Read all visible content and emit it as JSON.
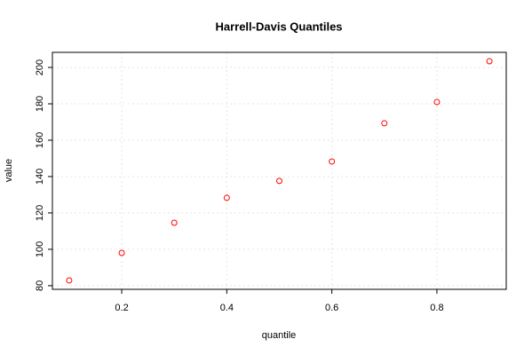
{
  "chart_data": {
    "type": "scatter",
    "title": "Harrell-Davis Quantiles",
    "x_label": "quantile",
    "y_label": "value",
    "x": [
      0.1,
      0.2,
      0.3,
      0.4,
      0.5,
      0.6,
      0.7,
      0.8,
      0.9
    ],
    "series": [
      {
        "name": "value",
        "color": "#ff0000",
        "values": [
          82.9,
          98.0,
          114.6,
          128.3,
          137.6,
          148.3,
          169.3,
          181.0,
          203.4
        ]
      }
    ],
    "xlim": [
      0.068,
      0.932
    ],
    "ylim": [
      78.0,
      208.3
    ],
    "xticks": [
      0.2,
      0.4,
      0.6,
      0.8
    ],
    "yticks": [
      80,
      100,
      120,
      140,
      160,
      180,
      200
    ],
    "grid": true
  }
}
